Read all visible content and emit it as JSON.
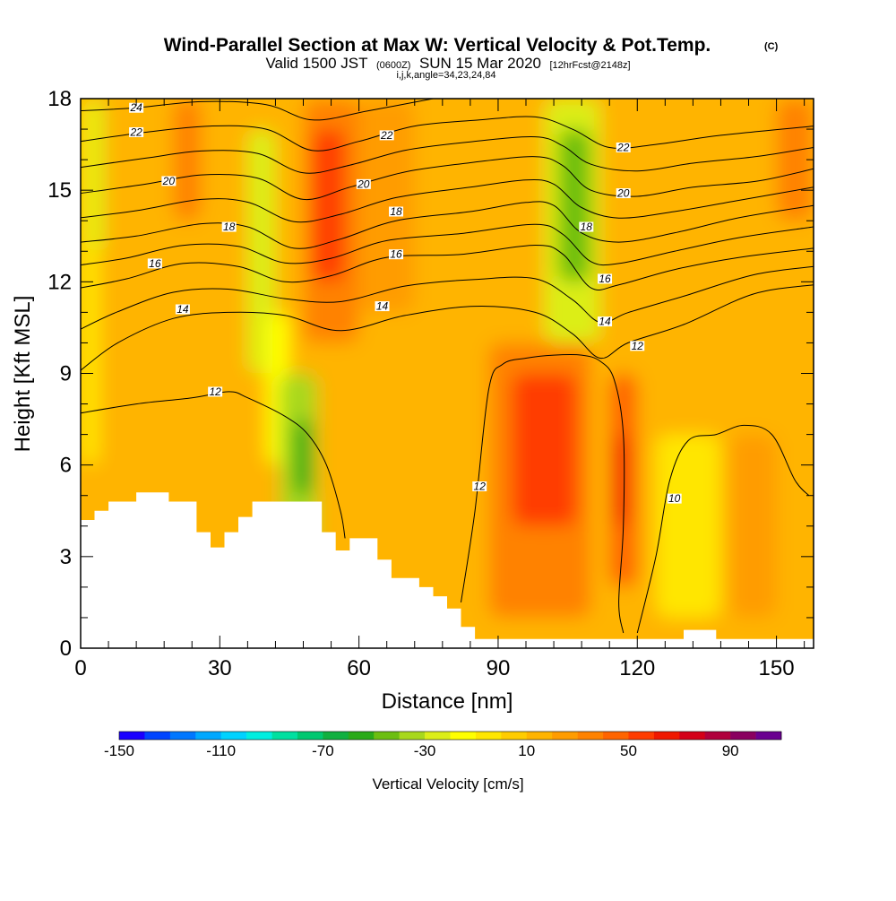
{
  "title": "Wind-Parallel Section at Max W: Vertical Velocity & Pot.Temp.",
  "copyright_mark": "(C)",
  "subtitle": {
    "valid_prefix": "Valid 1500 JST",
    "utc": "(0600Z)",
    "date": "SUN 15 Mar 2020",
    "forecast": "[12hrFcst@2148z]"
  },
  "indices": "i,j,k,angle=34,23,24,84",
  "chart_data": {
    "type": "heatmap",
    "xlabel": "Distance [nm]",
    "ylabel": "Height [Kft MSL]",
    "xlim": [
      0,
      158
    ],
    "ylim": [
      0,
      18
    ],
    "x_ticks": [
      0,
      30,
      60,
      90,
      120,
      150
    ],
    "y_ticks": [
      0,
      3,
      6,
      9,
      12,
      15,
      18
    ],
    "colorbar": {
      "label": "Vertical Velocity [cm/s]",
      "tick_labels": [
        "-150",
        "-110",
        "-70",
        "-30",
        "10",
        "50",
        "90"
      ],
      "min": -150,
      "max": 110,
      "colors": [
        "#1a00ff",
        "#0044ff",
        "#0077ff",
        "#00a8ff",
        "#00d2ff",
        "#00eee0",
        "#00e0a0",
        "#00c870",
        "#10b040",
        "#2aaa18",
        "#6cbe10",
        "#a8d81c",
        "#dcee18",
        "#ffff00",
        "#ffe600",
        "#ffcc00",
        "#ffb400",
        "#ff9c00",
        "#ff8200",
        "#ff6400",
        "#ff3c00",
        "#f01800",
        "#d40018",
        "#b0003c",
        "#8a0060",
        "#6a0090"
      ]
    },
    "velocity_regions": [
      {
        "x0": 0,
        "x1": 158,
        "y0": 0,
        "y1": 18,
        "w": 15
      },
      {
        "x0": 0,
        "x1": 4,
        "y0": 6,
        "y1": 18,
        "w": -10
      },
      {
        "x0": 2,
        "x1": 5,
        "y0": 13,
        "y1": 18,
        "w": -25
      },
      {
        "x0": 20,
        "x1": 26,
        "y0": 14,
        "y1": 18,
        "w": 30
      },
      {
        "x0": 36,
        "x1": 42,
        "y0": 9,
        "y1": 17,
        "w": -22
      },
      {
        "x0": 40,
        "x1": 45,
        "y0": 6,
        "y1": 11,
        "w": -20
      },
      {
        "x0": 43,
        "x1": 51,
        "y0": 3,
        "y1": 9,
        "w": -40
      },
      {
        "x0": 46,
        "x1": 50,
        "y0": 5,
        "y1": 7.5,
        "w": -60
      },
      {
        "x0": 48,
        "x1": 60,
        "y0": 10,
        "y1": 18,
        "w": 35
      },
      {
        "x0": 50,
        "x1": 57,
        "y0": 12,
        "y1": 17,
        "w": 50
      },
      {
        "x0": 60,
        "x1": 72,
        "y0": 11,
        "y1": 18,
        "w": 25
      },
      {
        "x0": 88,
        "x1": 110,
        "y0": 1,
        "y1": 10,
        "w": 35
      },
      {
        "x0": 93,
        "x1": 107,
        "y0": 4,
        "y1": 9,
        "w": 55
      },
      {
        "x0": 100,
        "x1": 112,
        "y0": 10,
        "y1": 18,
        "w": -30
      },
      {
        "x0": 103,
        "x1": 110,
        "y0": 12,
        "y1": 17,
        "w": -50
      },
      {
        "x0": 114,
        "x1": 120,
        "y0": 2,
        "y1": 9,
        "w": 45
      },
      {
        "x0": 115,
        "x1": 118,
        "y0": 4,
        "y1": 7,
        "w": 60
      },
      {
        "x0": 124,
        "x1": 138,
        "y0": 1,
        "y1": 7,
        "w": -8
      },
      {
        "x0": 140,
        "x1": 150,
        "y0": 1,
        "y1": 7,
        "w": 28
      },
      {
        "x0": 150,
        "x1": 158,
        "y0": 14,
        "y1": 18,
        "w": 30
      }
    ],
    "terrain": [
      [
        0,
        4.2
      ],
      [
        3,
        4.2
      ],
      [
        3,
        4.5
      ],
      [
        6,
        4.5
      ],
      [
        6,
        4.8
      ],
      [
        12,
        4.8
      ],
      [
        12,
        5.1
      ],
      [
        19,
        5.1
      ],
      [
        19,
        4.8
      ],
      [
        25,
        4.8
      ],
      [
        25,
        3.8
      ],
      [
        28,
        3.8
      ],
      [
        28,
        3.3
      ],
      [
        31,
        3.3
      ],
      [
        31,
        3.8
      ],
      [
        34,
        3.8
      ],
      [
        34,
        4.3
      ],
      [
        37,
        4.3
      ],
      [
        37,
        4.8
      ],
      [
        52,
        4.8
      ],
      [
        52,
        3.8
      ],
      [
        55,
        3.8
      ],
      [
        55,
        3.2
      ],
      [
        58,
        3.2
      ],
      [
        58,
        3.6
      ],
      [
        64,
        3.6
      ],
      [
        64,
        2.9
      ],
      [
        67,
        2.9
      ],
      [
        67,
        2.3
      ],
      [
        73,
        2.3
      ],
      [
        73,
        2.0
      ],
      [
        76,
        2.0
      ],
      [
        76,
        1.7
      ],
      [
        79,
        1.7
      ],
      [
        79,
        1.3
      ],
      [
        82,
        1.3
      ],
      [
        82,
        0.7
      ],
      [
        85,
        0.7
      ],
      [
        85,
        0.3
      ],
      [
        130,
        0.3
      ],
      [
        130,
        0.6
      ],
      [
        137,
        0.6
      ],
      [
        137,
        0.3
      ],
      [
        158,
        0.3
      ]
    ],
    "contour_levels": [
      10,
      12,
      14,
      16,
      18,
      20,
      22,
      24
    ],
    "contours": [
      {
        "level": 12,
        "points": [
          [
            0,
            7.7
          ],
          [
            12,
            8.0
          ],
          [
            24,
            8.2
          ],
          [
            32,
            8.4
          ],
          [
            36,
            8.2
          ],
          [
            44,
            7.6
          ],
          [
            49,
            7.0
          ],
          [
            53,
            6.0
          ],
          [
            56,
            4.5
          ],
          [
            57,
            3.6
          ]
        ]
      },
      {
        "level": 12,
        "points": [
          [
            82,
            1.5
          ],
          [
            85,
            4.5
          ],
          [
            88,
            8.5
          ],
          [
            91,
            9.3
          ],
          [
            96,
            9.5
          ],
          [
            102,
            9.6
          ],
          [
            108,
            9.6
          ],
          [
            112,
            9.4
          ],
          [
            115,
            8.8
          ],
          [
            117,
            7.0
          ],
          [
            117,
            4.0
          ],
          [
            116,
            1.5
          ],
          [
            117,
            0.5
          ]
        ]
      },
      {
        "level": 10,
        "points": [
          [
            120,
            0.5
          ],
          [
            124,
            3.0
          ],
          [
            127,
            5.5
          ],
          [
            131,
            6.8
          ],
          [
            137,
            7.0
          ],
          [
            143,
            7.3
          ],
          [
            149,
            7.0
          ],
          [
            154,
            5.5
          ],
          [
            157,
            5.0
          ]
        ]
      },
      {
        "level": 14,
        "points": [
          [
            0,
            9.1
          ],
          [
            8,
            10.0
          ],
          [
            20,
            10.8
          ],
          [
            32,
            11.0
          ],
          [
            44,
            10.9
          ],
          [
            56,
            10.4
          ],
          [
            70,
            10.9
          ],
          [
            85,
            11.2
          ],
          [
            98,
            11.0
          ],
          [
            106,
            10.3
          ],
          [
            112,
            9.5
          ],
          [
            118,
            10.0
          ],
          [
            130,
            10.6
          ],
          [
            145,
            11.6
          ],
          [
            158,
            11.9
          ]
        ]
      },
      {
        "level": 16,
        "points": [
          [
            0,
            11.8
          ],
          [
            10,
            12.1
          ],
          [
            22,
            12.6
          ],
          [
            34,
            12.5
          ],
          [
            44,
            12.0
          ],
          [
            54,
            12.2
          ],
          [
            66,
            12.8
          ],
          [
            82,
            12.9
          ],
          [
            98,
            13.2
          ],
          [
            104,
            12.9
          ],
          [
            110,
            11.8
          ],
          [
            116,
            11.9
          ],
          [
            128,
            12.4
          ],
          [
            142,
            12.8
          ],
          [
            158,
            13.1
          ]
        ]
      },
      {
        "level": 18,
        "points": [
          [
            0,
            13.3
          ],
          [
            12,
            13.5
          ],
          [
            26,
            13.9
          ],
          [
            36,
            13.8
          ],
          [
            46,
            13.1
          ],
          [
            56,
            13.4
          ],
          [
            68,
            14.0
          ],
          [
            84,
            14.3
          ],
          [
            96,
            14.6
          ],
          [
            102,
            14.5
          ],
          [
            108,
            13.6
          ],
          [
            116,
            13.3
          ],
          [
            128,
            13.6
          ],
          [
            142,
            14.1
          ],
          [
            158,
            14.5
          ]
        ]
      },
      {
        "level": 20,
        "points": [
          [
            0,
            14.9
          ],
          [
            14,
            15.2
          ],
          [
            26,
            15.5
          ],
          [
            38,
            15.4
          ],
          [
            48,
            14.7
          ],
          [
            58,
            15.1
          ],
          [
            70,
            15.6
          ],
          [
            84,
            15.9
          ],
          [
            98,
            16.1
          ],
          [
            104,
            15.8
          ],
          [
            110,
            15.0
          ],
          [
            120,
            14.8
          ],
          [
            132,
            15.1
          ],
          [
            146,
            15.3
          ],
          [
            158,
            15.7
          ]
        ]
      },
      {
        "level": 22,
        "points": [
          [
            0,
            16.6
          ],
          [
            14,
            16.9
          ],
          [
            28,
            17.1
          ],
          [
            40,
            17.0
          ],
          [
            50,
            16.3
          ],
          [
            60,
            16.6
          ],
          [
            72,
            17.1
          ],
          [
            86,
            17.3
          ],
          [
            98,
            17.4
          ],
          [
            106,
            17.0
          ],
          [
            114,
            16.4
          ],
          [
            124,
            16.5
          ],
          [
            138,
            16.8
          ],
          [
            158,
            17.1
          ]
        ]
      },
      {
        "level": 24,
        "points": [
          [
            0,
            17.6
          ],
          [
            12,
            17.7
          ],
          [
            26,
            17.9
          ],
          [
            40,
            17.8
          ],
          [
            50,
            17.3
          ],
          [
            62,
            17.6
          ],
          [
            76,
            18.0
          ]
        ]
      }
    ],
    "contour_labels": [
      {
        "text": "24",
        "x": 12,
        "y": 17.7
      },
      {
        "text": "22",
        "x": 12,
        "y": 16.9
      },
      {
        "text": "20",
        "x": 19,
        "y": 15.3
      },
      {
        "text": "18",
        "x": 32,
        "y": 13.8
      },
      {
        "text": "16",
        "x": 16,
        "y": 12.6
      },
      {
        "text": "14",
        "x": 22,
        "y": 11.1
      },
      {
        "text": "12",
        "x": 29,
        "y": 8.4
      },
      {
        "text": "22",
        "x": 66,
        "y": 16.8
      },
      {
        "text": "20",
        "x": 61,
        "y": 15.2
      },
      {
        "text": "18",
        "x": 68,
        "y": 14.3
      },
      {
        "text": "16",
        "x": 68,
        "y": 12.9
      },
      {
        "text": "14",
        "x": 65,
        "y": 11.2
      },
      {
        "text": "18",
        "x": 109,
        "y": 13.8
      },
      {
        "text": "16",
        "x": 113,
        "y": 12.1
      },
      {
        "text": "14",
        "x": 113,
        "y": 10.7
      },
      {
        "text": "12",
        "x": 120,
        "y": 9.9
      },
      {
        "text": "22",
        "x": 117,
        "y": 16.4
      },
      {
        "text": "20",
        "x": 117,
        "y": 14.9
      },
      {
        "text": "12",
        "x": 86,
        "y": 5.3
      },
      {
        "text": "10",
        "x": 128,
        "y": 4.9
      }
    ]
  }
}
